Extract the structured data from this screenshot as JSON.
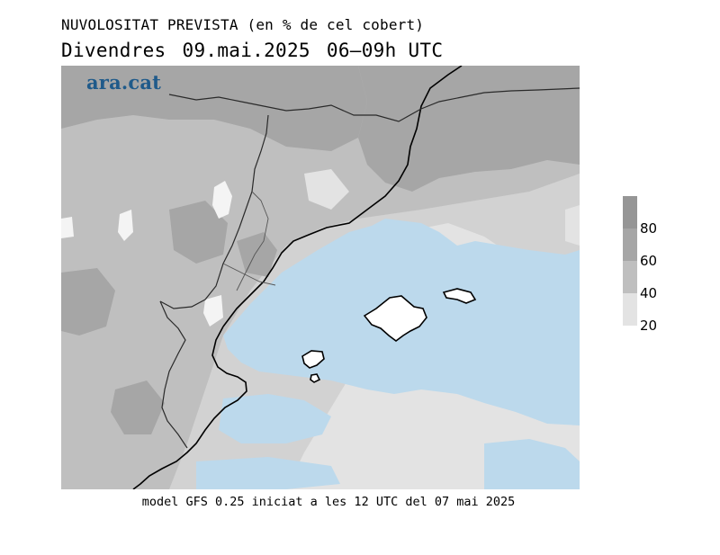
{
  "header": {
    "title": "NUVOLOSITAT PREVISTA (en % de cel cobert)",
    "day": "Divendres",
    "date": "09.mai.2025",
    "period": "06–09h UTC"
  },
  "brand": {
    "logo_text": "ara.cat"
  },
  "footer": {
    "text": "model GFS 0.25 iniciat a les 12 UTC del 07 mai 2025"
  },
  "legend": {
    "levels": [
      {
        "label": "80",
        "color": "#a6a6a6"
      },
      {
        "label": "60",
        "color": "#bfbfbf"
      },
      {
        "label": "40",
        "color": "#d2d2d2"
      },
      {
        "label": "20",
        "color": "#e3e3e3"
      }
    ],
    "top_color": "#969696"
  },
  "map": {
    "colors": {
      "clear": "#bcd9ec",
      "level20": "#e3e3e3",
      "level40": "#d2d2d2",
      "level60": "#bfbfbf",
      "level80": "#a6a6a6",
      "coast": "#000000",
      "border": "#2a2a2a"
    }
  }
}
